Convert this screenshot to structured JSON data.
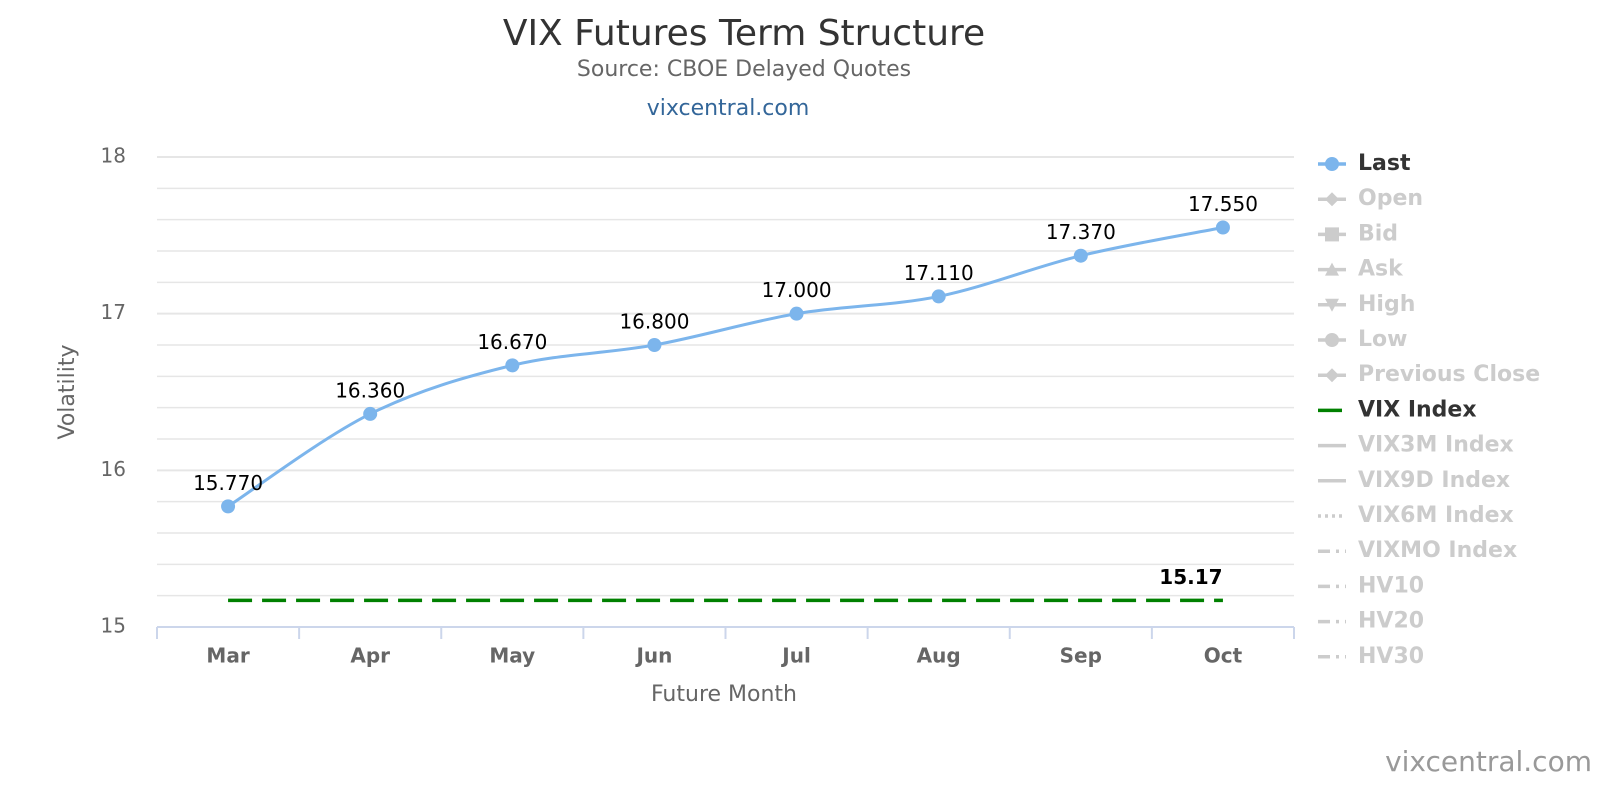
{
  "chart_data": {
    "type": "line",
    "title": "VIX Futures Term Structure",
    "subtitle": "Source: CBOE Delayed Quotes",
    "link": "vixcentral.com",
    "credits": "vixcentral.com",
    "x_label": "Future Month",
    "y_label": "Volatility",
    "categories": [
      "Mar",
      "Apr",
      "May",
      "Jun",
      "Jul",
      "Aug",
      "Sep",
      "Oct"
    ],
    "ylim": [
      15,
      18
    ],
    "yticks": [
      15,
      16,
      17,
      18
    ],
    "minor_yticks": [
      15.2,
      15.4,
      15.6,
      15.8,
      16.2,
      16.4,
      16.6,
      16.8,
      17.2,
      17.4,
      17.6,
      17.8
    ],
    "grid": true,
    "legend": "right",
    "legend_hidden_color": "#cccccc",
    "series": [
      {
        "name": "Last",
        "color": "#7cb5ec",
        "marker": "circle",
        "smooth": true,
        "values": [
          15.77,
          16.36,
          16.67,
          16.8,
          17.0,
          17.11,
          17.37,
          17.55
        ],
        "value_labels": [
          "15.770",
          "16.360",
          "16.670",
          "16.800",
          "17.000",
          "17.110",
          "17.370",
          "17.550"
        ]
      },
      {
        "name": "Open",
        "marker": "diamond",
        "visible": false
      },
      {
        "name": "Bid",
        "marker": "square",
        "visible": false
      },
      {
        "name": "Ask",
        "marker": "triangle",
        "visible": false
      },
      {
        "name": "High",
        "marker": "triangle-down",
        "visible": false
      },
      {
        "name": "Low",
        "marker": "circle",
        "visible": false
      },
      {
        "name": "Previous Close",
        "marker": "diamond",
        "visible": false
      },
      {
        "name": "VIX Index",
        "color": "#008000",
        "dash": "dash",
        "values": [
          15.17,
          15.17,
          15.17,
          15.17,
          15.17,
          15.17,
          15.17,
          15.17
        ],
        "value_labels": [
          null,
          null,
          null,
          null,
          null,
          null,
          null,
          "15.17"
        ]
      },
      {
        "name": "VIX3M Index",
        "dash": "solid",
        "visible": false
      },
      {
        "name": "VIX9D Index",
        "dash": "solid",
        "visible": false
      },
      {
        "name": "VIX6M Index",
        "dash": "dot",
        "visible": false
      },
      {
        "name": "VIXMO Index",
        "dash": "dashdot",
        "visible": false
      },
      {
        "name": "HV10",
        "dash": "dashdot",
        "visible": false
      },
      {
        "name": "HV20",
        "dash": "dashdot",
        "visible": false
      },
      {
        "name": "HV30",
        "dash": "dashdot",
        "visible": false
      }
    ]
  }
}
